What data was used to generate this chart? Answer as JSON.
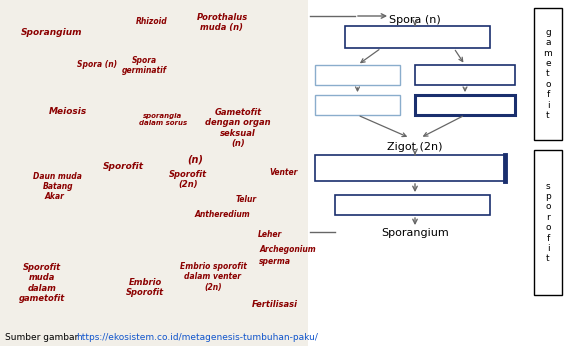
{
  "source_text": "Sumber gambar ",
  "source_url": "https://ekosistem.co.id/metagenesis-tumbuhan-paku/",
  "spora_label": "Spora (n)",
  "zigot_label": "Zigot (2n)",
  "sporangium_label": "Sporangium",
  "gametoft_label": "g\na\nm\ne\nt\no\nf\ni\nt",
  "sporofit_label": "s\np\no\nr\no\nf\ni\nt",
  "box_dark": "#1a2f6e",
  "box_light": "#8aadcc",
  "arrow_color": "#666666",
  "bg_color": "#ffffff",
  "left_bg": "#f2efe8"
}
